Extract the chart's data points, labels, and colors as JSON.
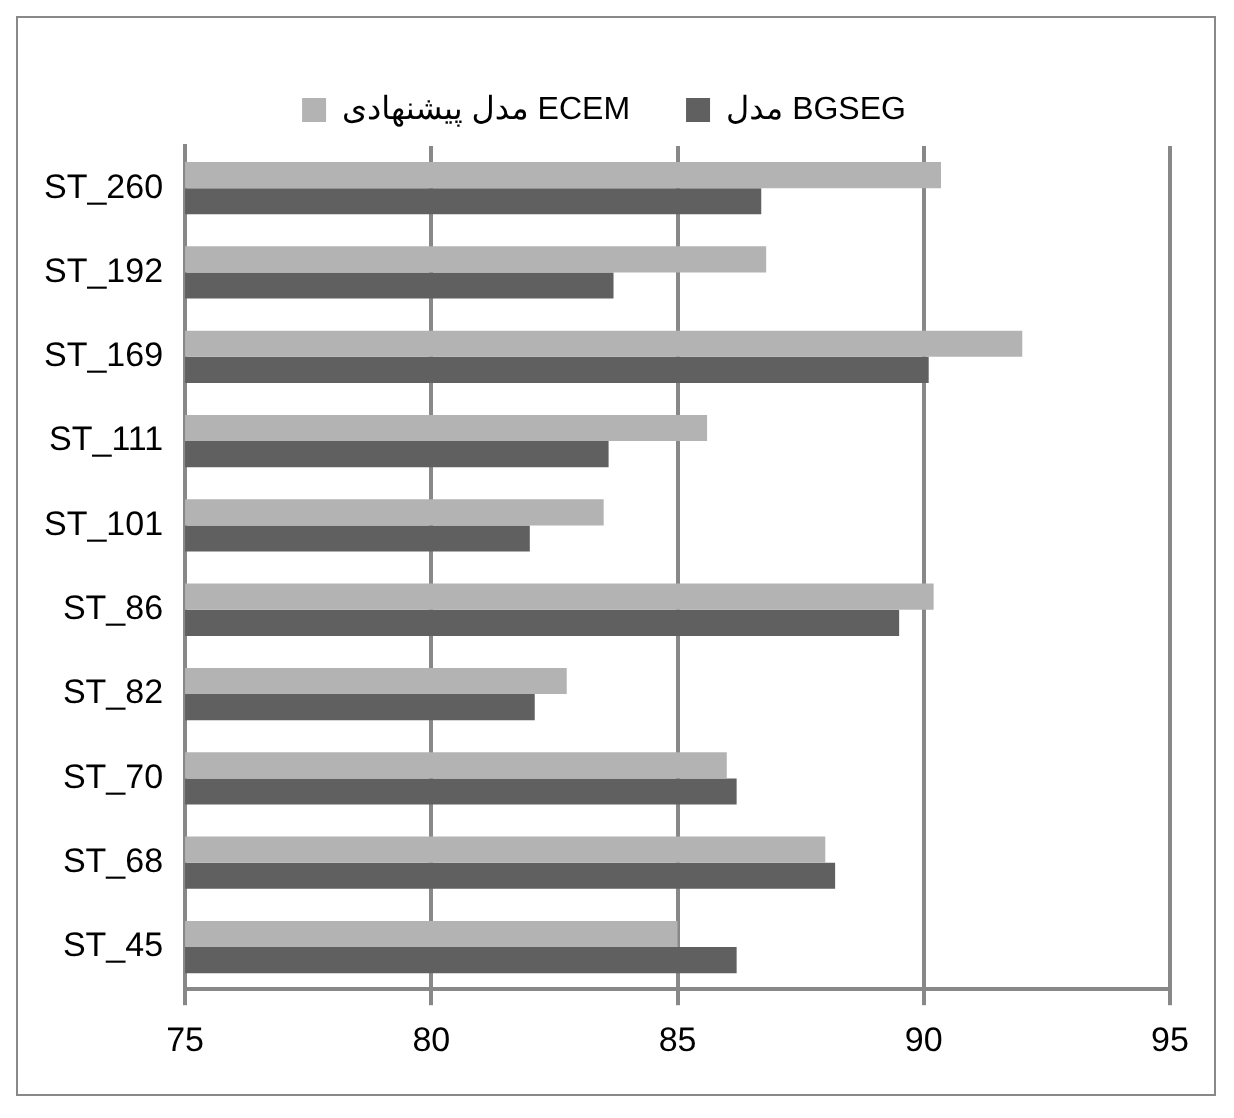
{
  "chart_data": {
    "type": "bar",
    "orientation": "horizontal",
    "categories": [
      "ST_260",
      "ST_192",
      "ST_169",
      "ST_111",
      "ST_101",
      "ST_86",
      "ST_82",
      "ST_70",
      "ST_68",
      "ST_45"
    ],
    "series": [
      {
        "name": "مدل پیشنهادی ECEM",
        "color": "#b3b3b3",
        "values": [
          90.35,
          86.8,
          92.0,
          85.6,
          83.5,
          90.2,
          82.75,
          86.0,
          88.0,
          85.0
        ]
      },
      {
        "name": "مدل BGSEG",
        "color": "#606060",
        "values": [
          86.7,
          83.7,
          90.1,
          83.6,
          82.0,
          89.5,
          82.1,
          86.2,
          88.2,
          86.2
        ]
      }
    ],
    "xlim": [
      75,
      95
    ],
    "xticks": [
      75,
      80,
      85,
      90,
      95
    ],
    "grid": "x",
    "legend": "top"
  }
}
